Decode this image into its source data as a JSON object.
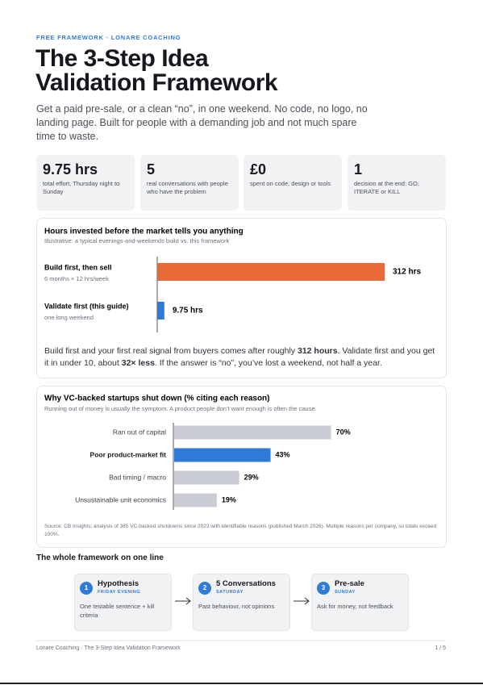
{
  "header": {
    "eyebrow": "FREE FRAMEWORK · LONARE COACHING",
    "title_lines": [
      "The 3-Step Idea",
      "Validation Framework"
    ],
    "intro": "Get a paid pre-sale, or a clean “no”, in one weekend. No code, no logo, no landing page. Built for people with a demanding job and not much spare time to waste."
  },
  "stats": [
    {
      "value": "9.75 hrs",
      "desc": "total effort, Thursday night to Sunday"
    },
    {
      "value": "5",
      "desc": "real conversations with people who have the problem"
    },
    {
      "value": "£0",
      "desc": "spent on code, design or tools"
    },
    {
      "value": "1",
      "desc": "decision at the end: GO, ITERATE or KILL"
    }
  ],
  "chart_data": [
    {
      "type": "bar",
      "orientation": "horizontal",
      "title": "Hours invested before the market tells you anything",
      "subtitle": "Illustrative: a typical evenings-and-weekends build vs. this framework",
      "categories": [
        "Build first, then sell",
        "Validate first (this guide)"
      ],
      "sublabels": [
        "6 months × 12 hrs/week",
        "one long weekend"
      ],
      "values": [
        312,
        9.75
      ],
      "value_labels": [
        "312 hrs",
        "9.75 hrs"
      ],
      "colors": [
        "#ea6a37",
        "#2f7bd8"
      ],
      "xlim": [
        0,
        312
      ],
      "note": [
        "Build first and your first real signal from buyers comes after roughly ",
        "312 hours",
        ". Validate first and you get it in under 10, about ",
        "32× less",
        ". If the answer is “no”, you’ve lost a weekend, not half a year."
      ]
    },
    {
      "type": "bar",
      "orientation": "horizontal",
      "title": "Why VC-backed startups shut down (% citing each reason)",
      "subtitle": "Running out of money is usually the symptom. A product people don’t want enough is often the cause.",
      "categories": [
        "Ran out of capital",
        "Poor product-market fit",
        "Bad timing / macro",
        "Unsustainable unit economics"
      ],
      "values": [
        70,
        43,
        29,
        19
      ],
      "value_labels": [
        "70%",
        "43%",
        "29%",
        "19%"
      ],
      "colors": [
        "#c9ccd3",
        "#2f7bd8",
        "#c9ccd3",
        "#c9ccd3"
      ],
      "highlight": 1,
      "xlim": [
        0,
        100
      ],
      "source": "Source: CB Insights, analysis of 385 VC-backed shutdowns since 2023 with identifiable reasons (published March 2026). Multiple reasons per company, so totals exceed 100%."
    }
  ],
  "framework": {
    "heading": "The whole framework on one line",
    "steps": [
      {
        "num": "1",
        "title": "Hypothesis",
        "when": "FRIDAY EVENING",
        "desc": "One testable sentence + kill criteria"
      },
      {
        "num": "2",
        "title": "5 Conversations",
        "when": "SATURDAY",
        "desc": "Past behaviour, not opinions"
      },
      {
        "num": "3",
        "title": "Pre-sale",
        "when": "SUNDAY",
        "desc": "Ask for money, not feedback"
      }
    ]
  },
  "footer": {
    "left": "Lonare Coaching · The 3-Step Idea Validation Framework",
    "right": "1 / 5"
  }
}
